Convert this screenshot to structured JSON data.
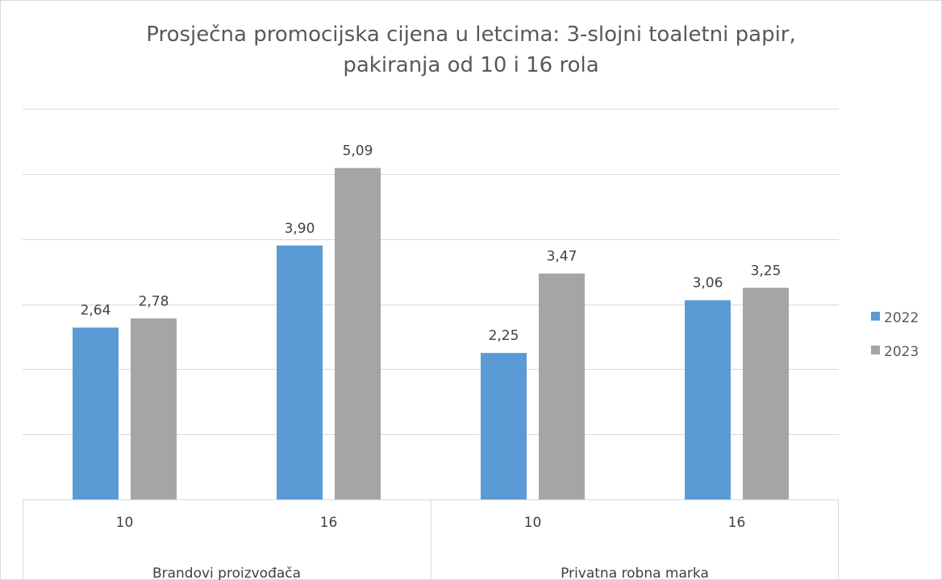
{
  "chart_data": {
    "type": "bar",
    "title_line1": "Prosječna promocijska cijena u letcima: 3-slojni toaletni papir,",
    "title_line2": "pakiranja od 10 i 16 rola",
    "groups": [
      {
        "label": "Brandovi proizvođača",
        "categories": [
          "10",
          "16"
        ]
      },
      {
        "label": "Privatna robna marka",
        "categories": [
          "10",
          "16"
        ]
      }
    ],
    "categories": [
      "10",
      "16",
      "10",
      "16"
    ],
    "series": [
      {
        "name": "2022",
        "color": "#5b9bd5",
        "values": [
          2.64,
          3.9,
          2.25,
          3.06
        ],
        "labels": [
          "2,64",
          "3,90",
          "2,25",
          "3,06"
        ]
      },
      {
        "name": "2023",
        "color": "#a5a5a5",
        "values": [
          2.78,
          5.09,
          3.47,
          3.25
        ],
        "labels": [
          "2,78",
          "5,09",
          "3,47",
          "3,25"
        ]
      }
    ],
    "ylim": [
      0,
      6
    ],
    "grid": true,
    "legend_position": "right"
  }
}
